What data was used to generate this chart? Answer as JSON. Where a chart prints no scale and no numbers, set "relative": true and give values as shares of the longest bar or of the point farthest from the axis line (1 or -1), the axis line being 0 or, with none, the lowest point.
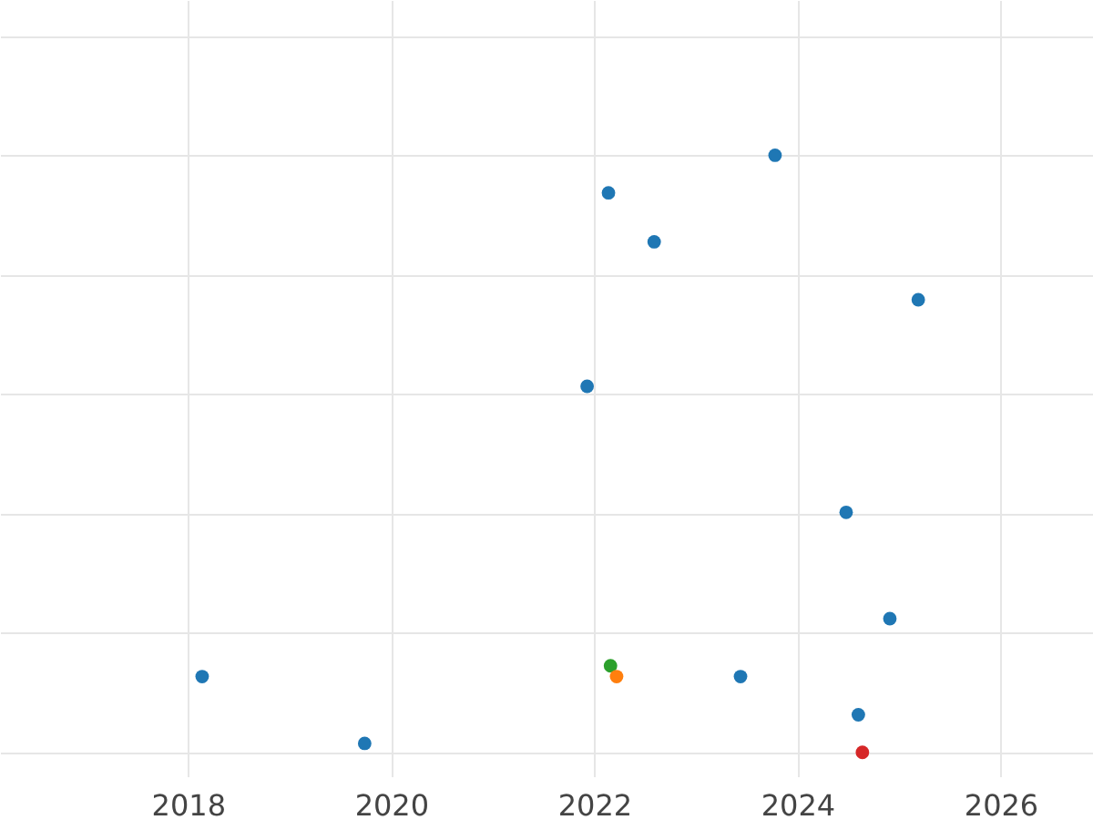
{
  "chart_data": {
    "type": "scatter",
    "relative": true,
    "marker": "circle",
    "grid": true,
    "tick_labels": "x",
    "x": [
      2018.14,
      2019.74,
      2021.93,
      2022.14,
      2022.16,
      2022.22,
      2022.59,
      2023.44,
      2023.78,
      2024.48,
      2024.6,
      2024.64,
      2024.91,
      2025.19
    ],
    "values": [
      0.127,
      0.015,
      0.613,
      0.937,
      0.145,
      0.127,
      0.855,
      0.127,
      1,
      0.402,
      0.063,
      0,
      0.224,
      0.758
    ],
    "colors": [
      "#1f77b4",
      "#1f77b4",
      "#1f77b4",
      "#1f77b4",
      "#2ca02c",
      "#ff7f0e",
      "#1f77b4",
      "#1f77b4",
      "#1f77b4",
      "#1f77b4",
      "#1f77b4",
      "#d62728",
      "#1f77b4",
      "#1f77b4"
    ],
    "xlim": [
      2016.15,
      2026.91
    ],
    "xticks": [
      2018,
      2020,
      2022,
      2024,
      2026
    ]
  }
}
